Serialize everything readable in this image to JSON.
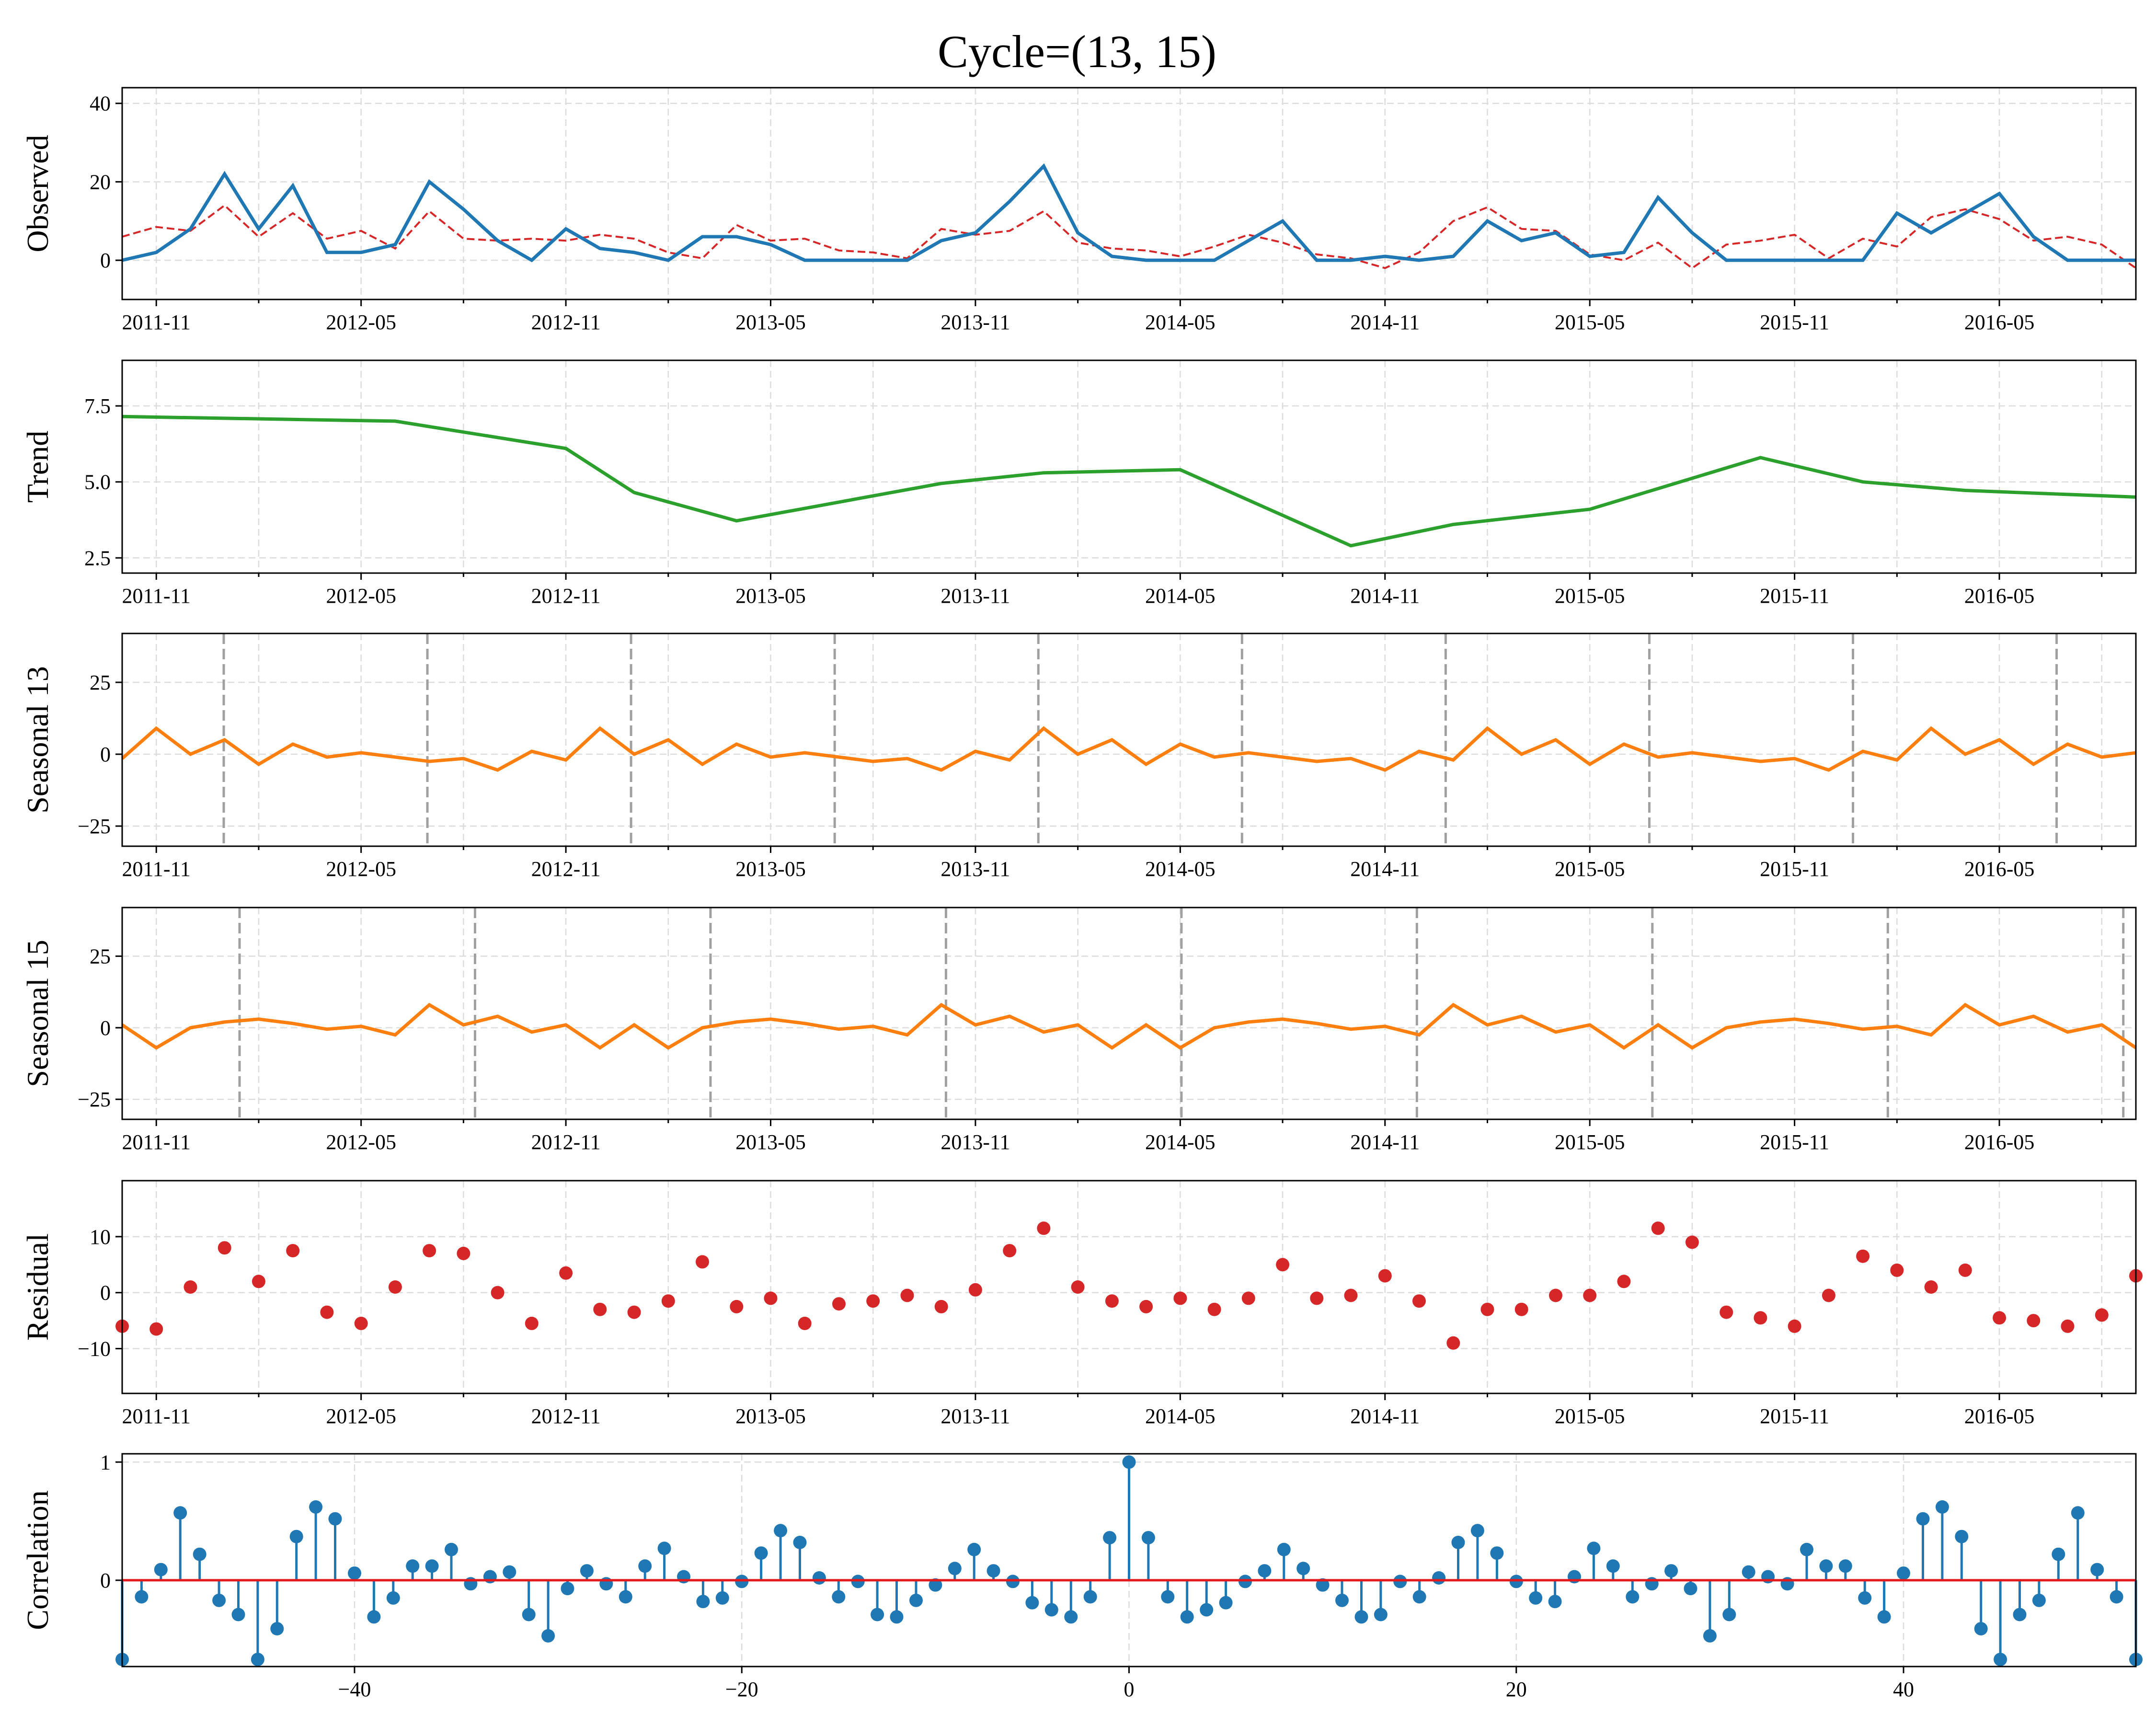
{
  "title": "Cycle=(13, 15)",
  "colors": {
    "observed": "#1f77b4",
    "reconstructed": "#d62728",
    "trend": "#2ca02c",
    "seasonal": "#ff7f0e",
    "residual": "#d62728",
    "correlation": "#1f77b4",
    "zero_line": "#e31a1c",
    "period_lines": "#a0a0a0"
  },
  "chart_data": [
    {
      "type": "line",
      "ylabel": "Observed",
      "x": [
        "2011-10",
        "2011-11",
        "2011-12",
        "2012-01",
        "2012-02",
        "2012-03",
        "2012-04",
        "2012-05",
        "2012-06",
        "2012-07",
        "2012-08",
        "2012-09",
        "2012-10",
        "2012-11",
        "2012-12",
        "2013-01",
        "2013-02",
        "2013-03",
        "2013-04",
        "2013-05",
        "2013-06",
        "2013-07",
        "2013-08",
        "2013-09",
        "2013-10",
        "2013-11",
        "2013-12",
        "2014-01",
        "2014-02",
        "2014-03",
        "2014-04",
        "2014-05",
        "2014-06",
        "2014-07",
        "2014-08",
        "2014-09",
        "2014-10",
        "2014-11",
        "2014-12",
        "2015-01",
        "2015-02",
        "2015-03",
        "2015-04",
        "2015-05",
        "2015-06",
        "2015-07",
        "2015-08",
        "2015-09",
        "2015-10",
        "2015-11",
        "2015-12",
        "2016-01",
        "2016-02",
        "2016-03",
        "2016-04",
        "2016-05",
        "2016-06",
        "2016-07",
        "2016-08",
        "2016-09"
      ],
      "series": [
        {
          "values": [
            0,
            2,
            8,
            22,
            8,
            19,
            2,
            2,
            4,
            20,
            13,
            5,
            0,
            8,
            3,
            2,
            0,
            6,
            6,
            4,
            0,
            0,
            0,
            0,
            5,
            7,
            15,
            24,
            7,
            1,
            0,
            0,
            0,
            5,
            10,
            0,
            0,
            1,
            0,
            1,
            10,
            5,
            7,
            1,
            2,
            16,
            7,
            0,
            0,
            0,
            0,
            0,
            12,
            7,
            12,
            17,
            6,
            0,
            0,
            0
          ]
        },
        {
          "values": [
            6,
            8.5,
            7.5,
            14,
            6,
            12,
            5.5,
            7.5,
            3,
            12.5,
            5.5,
            5,
            5.5,
            5,
            6.5,
            5.5,
            2,
            0.5,
            9,
            5,
            5.5,
            2.5,
            2,
            0.5,
            8,
            6.5,
            7.5,
            12.5,
            4.5,
            3,
            2.5,
            1,
            3.5,
            6.5,
            4.5,
            1.5,
            0.5,
            -2,
            2,
            10,
            13.5,
            8,
            7.5,
            1.5,
            0,
            4.5,
            -2,
            4,
            5,
            6.5,
            0.5,
            5.5,
            3.5,
            11,
            13,
            10.5,
            5,
            6,
            4,
            -2
          ]
        }
      ],
      "yticks": [
        0,
        20,
        40
      ],
      "ylim": [
        -10,
        44
      ],
      "xtick_labels": [
        "2011-11",
        "2012-05",
        "2012-11",
        "2013-05",
        "2013-11",
        "2014-05",
        "2014-11",
        "2015-05",
        "2015-11",
        "2016-05"
      ]
    },
    {
      "type": "line",
      "ylabel": "Trend",
      "x": [
        "2011-10",
        "2012-06",
        "2012-11",
        "2013-01",
        "2013-04",
        "2013-10",
        "2014-01",
        "2014-05",
        "2014-10",
        "2015-01",
        "2015-05",
        "2015-10",
        "2016-01",
        "2016-04",
        "2016-09"
      ],
      "series": [
        {
          "values": [
            7.15,
            7.0,
            6.1,
            4.65,
            3.72,
            4.95,
            5.3,
            5.4,
            2.9,
            3.6,
            4.1,
            5.8,
            5.0,
            4.72,
            4.5
          ]
        }
      ],
      "yticks": [
        2.5,
        5.0,
        7.5
      ],
      "yticklabels": [
        "2.5",
        "5.0",
        "7.5"
      ],
      "ylim": [
        2.0,
        9.0
      ],
      "xtick_labels": [
        "2011-11",
        "2012-05",
        "2012-11",
        "2013-05",
        "2013-11",
        "2014-05",
        "2014-11",
        "2015-05",
        "2015-11",
        "2016-05"
      ]
    },
    {
      "type": "line",
      "ylabel": "Seasonal 13",
      "period": 13,
      "x": [
        "2011-10",
        "2011-11",
        "2011-12",
        "2012-01",
        "2012-02",
        "2012-03",
        "2012-04",
        "2012-05",
        "2012-06",
        "2012-07",
        "2012-08",
        "2012-09",
        "2012-10",
        "2012-11",
        "2012-12",
        "2013-01",
        "2013-02",
        "2013-03",
        "2013-04",
        "2013-05",
        "2013-06",
        "2013-07",
        "2013-08",
        "2013-09",
        "2013-10",
        "2013-11",
        "2013-12",
        "2014-01",
        "2014-02",
        "2014-03",
        "2014-04",
        "2014-05",
        "2014-06",
        "2014-07",
        "2014-08",
        "2014-09",
        "2014-10",
        "2014-11",
        "2014-12",
        "2015-01",
        "2015-02",
        "2015-03",
        "2015-04",
        "2015-05",
        "2015-06",
        "2015-07",
        "2015-08",
        "2015-09",
        "2015-10",
        "2015-11",
        "2015-12",
        "2016-01",
        "2016-02",
        "2016-03",
        "2016-04",
        "2016-05",
        "2016-06",
        "2016-07",
        "2016-08",
        "2016-09"
      ],
      "series": [
        {
          "values": [
            -1.5,
            9,
            0,
            5,
            -3.5,
            3.5,
            -1,
            0.5,
            -1,
            -2.5,
            -1.5,
            -5.5,
            1,
            -2,
            9,
            0,
            5,
            -3.5,
            3.5,
            -1,
            0.5,
            -1,
            -2.5,
            -1.5,
            -5.5,
            1,
            -2,
            9,
            0,
            5,
            -3.5,
            3.5,
            -1,
            0.5,
            -1,
            -2.5,
            -1.5,
            -5.5,
            1,
            -2,
            9,
            0,
            5,
            -3.5,
            3.5,
            -1,
            0.5,
            -1,
            -2.5,
            -1.5,
            -5.5,
            1,
            -2,
            9,
            0,
            5,
            -3.5,
            3.5,
            -1,
            0.5
          ]
        }
      ],
      "yticks": [
        -25,
        0,
        25
      ],
      "ylim": [
        -32,
        42
      ],
      "xtick_labels": [
        "2011-11",
        "2012-05",
        "2012-11",
        "2013-05",
        "2013-11",
        "2014-05",
        "2014-11",
        "2015-05",
        "2015-11",
        "2016-05"
      ]
    },
    {
      "type": "line",
      "ylabel": "Seasonal 15",
      "period": 15,
      "x": [
        "2011-10",
        "2011-11",
        "2011-12",
        "2012-01",
        "2012-02",
        "2012-03",
        "2012-04",
        "2012-05",
        "2012-06",
        "2012-07",
        "2012-08",
        "2012-09",
        "2012-10",
        "2012-11",
        "2012-12",
        "2013-01",
        "2013-02",
        "2013-03",
        "2013-04",
        "2013-05",
        "2013-06",
        "2013-07",
        "2013-08",
        "2013-09",
        "2013-10",
        "2013-11",
        "2013-12",
        "2014-01",
        "2014-02",
        "2014-03",
        "2014-04",
        "2014-05",
        "2014-06",
        "2014-07",
        "2014-08",
        "2014-09",
        "2014-10",
        "2014-11",
        "2014-12",
        "2015-01",
        "2015-02",
        "2015-03",
        "2015-04",
        "2015-05",
        "2015-06",
        "2015-07",
        "2015-08",
        "2015-09",
        "2015-10",
        "2015-11",
        "2015-12",
        "2016-01",
        "2016-02",
        "2016-03",
        "2016-04",
        "2016-05",
        "2016-06",
        "2016-07",
        "2016-08",
        "2016-09"
      ],
      "series": [
        {
          "values": [
            1,
            -7,
            0,
            2,
            3,
            1.5,
            -0.5,
            0.5,
            -2.5,
            8,
            1,
            4,
            -1.5,
            1,
            -7,
            1,
            -7,
            0,
            2,
            3,
            1.5,
            -0.5,
            0.5,
            -2.5,
            8,
            1,
            4,
            -1.5,
            1,
            -7,
            1,
            -7,
            0,
            2,
            3,
            1.5,
            -0.5,
            0.5,
            -2.5,
            8,
            1,
            4,
            -1.5,
            1,
            -7,
            1,
            -7,
            0,
            2,
            3,
            1.5,
            -0.5,
            0.5,
            -2.5,
            8,
            1,
            4,
            -1.5,
            1,
            -7
          ]
        }
      ],
      "yticks": [
        -25,
        0,
        25
      ],
      "ylim": [
        -32,
        42
      ],
      "xtick_labels": [
        "2011-11",
        "2012-05",
        "2012-11",
        "2013-05",
        "2013-11",
        "2014-05",
        "2014-11",
        "2015-05",
        "2015-11",
        "2016-05"
      ]
    },
    {
      "type": "scatter",
      "ylabel": "Residual",
      "x": [
        "2011-10",
        "2011-11",
        "2011-12",
        "2012-01",
        "2012-02",
        "2012-03",
        "2012-04",
        "2012-05",
        "2012-06",
        "2012-07",
        "2012-08",
        "2012-09",
        "2012-10",
        "2012-11",
        "2012-12",
        "2013-01",
        "2013-02",
        "2013-03",
        "2013-04",
        "2013-05",
        "2013-06",
        "2013-07",
        "2013-08",
        "2013-09",
        "2013-10",
        "2013-11",
        "2013-12",
        "2014-01",
        "2014-02",
        "2014-03",
        "2014-04",
        "2014-05",
        "2014-06",
        "2014-07",
        "2014-08",
        "2014-09",
        "2014-10",
        "2014-11",
        "2014-12",
        "2015-01",
        "2015-02",
        "2015-03",
        "2015-04",
        "2015-05",
        "2015-06",
        "2015-07",
        "2015-08",
        "2015-09",
        "2015-10",
        "2015-11",
        "2015-12",
        "2016-01",
        "2016-02",
        "2016-03",
        "2016-04",
        "2016-05",
        "2016-06",
        "2016-07",
        "2016-08",
        "2016-09"
      ],
      "series": [
        {
          "values": [
            -6,
            -6.5,
            1,
            8,
            2,
            7.5,
            -3.5,
            -5.5,
            1,
            7.5,
            7,
            0,
            -5.5,
            3.5,
            -3,
            -3.5,
            -1.5,
            5.5,
            -2.5,
            -1,
            -5.5,
            -2,
            -1.5,
            -0.5,
            -2.5,
            0.5,
            7.5,
            11.5,
            1,
            -1.5,
            -2.5,
            -1,
            -3,
            -1,
            5,
            -1,
            -0.5,
            3,
            -1.5,
            -9,
            -3,
            -3,
            -0.5,
            -0.5,
            2,
            11.5,
            9,
            -3.5,
            -4.5,
            -6,
            -0.5,
            6.5,
            4,
            1,
            4,
            -4.5,
            -5,
            -6,
            -4,
            3
          ]
        }
      ],
      "yticks": [
        -10,
        0,
        10
      ],
      "ylim": [
        -18,
        20
      ],
      "xtick_labels": [
        "2011-11",
        "2012-05",
        "2012-11",
        "2013-05",
        "2013-11",
        "2014-05",
        "2014-11",
        "2015-05",
        "2015-11",
        "2016-05"
      ]
    },
    {
      "type": "stem",
      "ylabel": "Correlation",
      "x": [
        -52,
        -51,
        -50,
        -49,
        -48,
        -47,
        -46,
        -45,
        -44,
        -43,
        -42,
        -41,
        -40,
        -39,
        -38,
        -37,
        -36,
        -35,
        -34,
        -33,
        -32,
        -31,
        -30,
        -29,
        -28,
        -27,
        -26,
        -25,
        -24,
        -23,
        -22,
        -21,
        -20,
        -19,
        -18,
        -17,
        -16,
        -15,
        -14,
        -13,
        -12,
        -11,
        -10,
        -9,
        -8,
        -7,
        -6,
        -5,
        -4,
        -3,
        -2,
        -1,
        0,
        1,
        2,
        3,
        4,
        5,
        6,
        7,
        8,
        9,
        10,
        11,
        12,
        13,
        14,
        15,
        16,
        17,
        18,
        19,
        20,
        21,
        22,
        23,
        24,
        25,
        26,
        27,
        28,
        29,
        30,
        31,
        32,
        33,
        34,
        35,
        36,
        37,
        38,
        39,
        40,
        41,
        42,
        43,
        44,
        45,
        46,
        47,
        48,
        49,
        50,
        51,
        52
      ],
      "series": [
        {
          "values": [
            -0.67,
            -0.14,
            0.09,
            0.57,
            0.22,
            -0.17,
            -0.29,
            -0.67,
            -0.41,
            0.37,
            0.62,
            0.52,
            0.06,
            -0.31,
            -0.15,
            0.12,
            0.12,
            0.26,
            -0.03,
            0.03,
            0.07,
            -0.29,
            -0.47,
            -0.07,
            0.08,
            -0.03,
            -0.14,
            0.12,
            0.27,
            0.03,
            -0.18,
            -0.15,
            -0.01,
            0.23,
            0.42,
            0.32,
            0.02,
            -0.14,
            -0.01,
            -0.29,
            -0.31,
            -0.17,
            -0.04,
            0.1,
            0.26,
            0.08,
            -0.01,
            -0.19,
            -0.25,
            -0.31,
            -0.14,
            0.36,
            1.0,
            0.36,
            -0.14,
            -0.31,
            -0.25,
            -0.19,
            -0.01,
            0.08,
            0.26,
            0.1,
            -0.04,
            -0.17,
            -0.31,
            -0.29,
            -0.01,
            -0.14,
            0.02,
            0.32,
            0.42,
            0.23,
            -0.01,
            -0.15,
            -0.18,
            0.03,
            0.27,
            0.12,
            -0.14,
            -0.03,
            0.08,
            -0.07,
            -0.47,
            -0.29,
            0.07,
            0.03,
            -0.03,
            0.26,
            0.12,
            0.12,
            -0.15,
            -0.31,
            0.06,
            0.52,
            0.62,
            0.37,
            -0.41,
            -0.67,
            -0.29,
            -0.17,
            0.22,
            0.57,
            0.09,
            -0.14,
            -0.67
          ]
        }
      ],
      "yticks": [
        0,
        1
      ],
      "xticks": [
        -40,
        -20,
        0,
        20,
        40
      ],
      "xtick_labels": [
        "−40",
        "−20",
        "0",
        "20",
        "40"
      ],
      "ylim": [
        -0.73,
        1.07
      ],
      "xlim": [
        -52,
        52
      ]
    }
  ]
}
